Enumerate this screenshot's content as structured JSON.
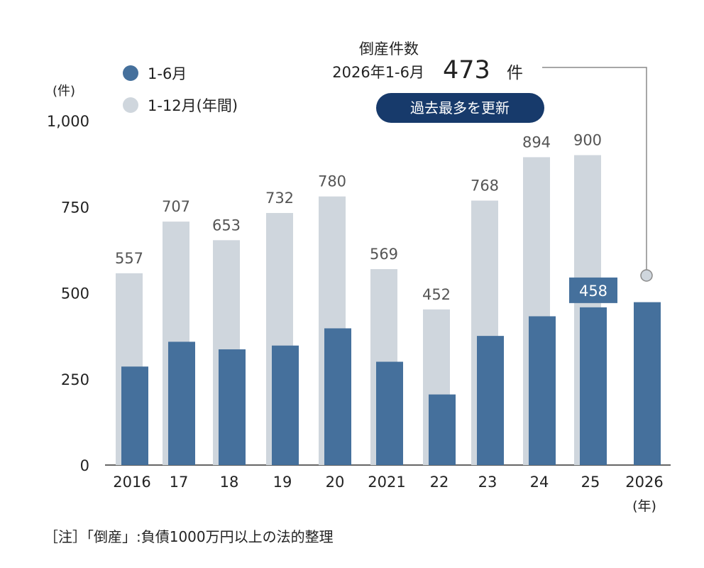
{
  "chart_data": {
    "type": "bar",
    "unit_label": "(件)",
    "x_unit_label": "(年)",
    "categories": [
      "2016",
      "17",
      "18",
      "19",
      "20",
      "2021",
      "22",
      "23",
      "24",
      "25",
      "2026"
    ],
    "series": [
      {
        "name": "1-12月(年間)",
        "color": "#cfd6dd",
        "values": [
          557,
          707,
          653,
          732,
          780,
          569,
          452,
          768,
          894,
          900,
          null
        ],
        "labels": [
          "557",
          "707",
          "653",
          "732",
          "780",
          "569",
          "452",
          "768",
          "894",
          "900",
          ""
        ]
      },
      {
        "name": "1-6月",
        "color": "#45709c",
        "values": [
          286,
          358,
          336,
          347,
          397,
          300,
          205,
          375,
          432,
          458,
          473
        ],
        "labels": [
          "",
          "",
          "",
          "",
          "",
          "",
          "",
          "",
          "",
          "458",
          ""
        ]
      }
    ],
    "ylim": [
      0,
      1000
    ],
    "yticks": [
      0,
      250,
      500,
      750,
      1000
    ],
    "ytick_labels": [
      "0",
      "250",
      "500",
      "750",
      "1,000"
    ],
    "grid": false,
    "legend": "top-left",
    "annotation": {
      "title": "倒産件数",
      "period": "2026年1-6月",
      "value": "473",
      "unit": "件",
      "badge": "過去最多を更新"
    },
    "note": "［注］「倒産」:負債1000万円以上の法的整理"
  }
}
